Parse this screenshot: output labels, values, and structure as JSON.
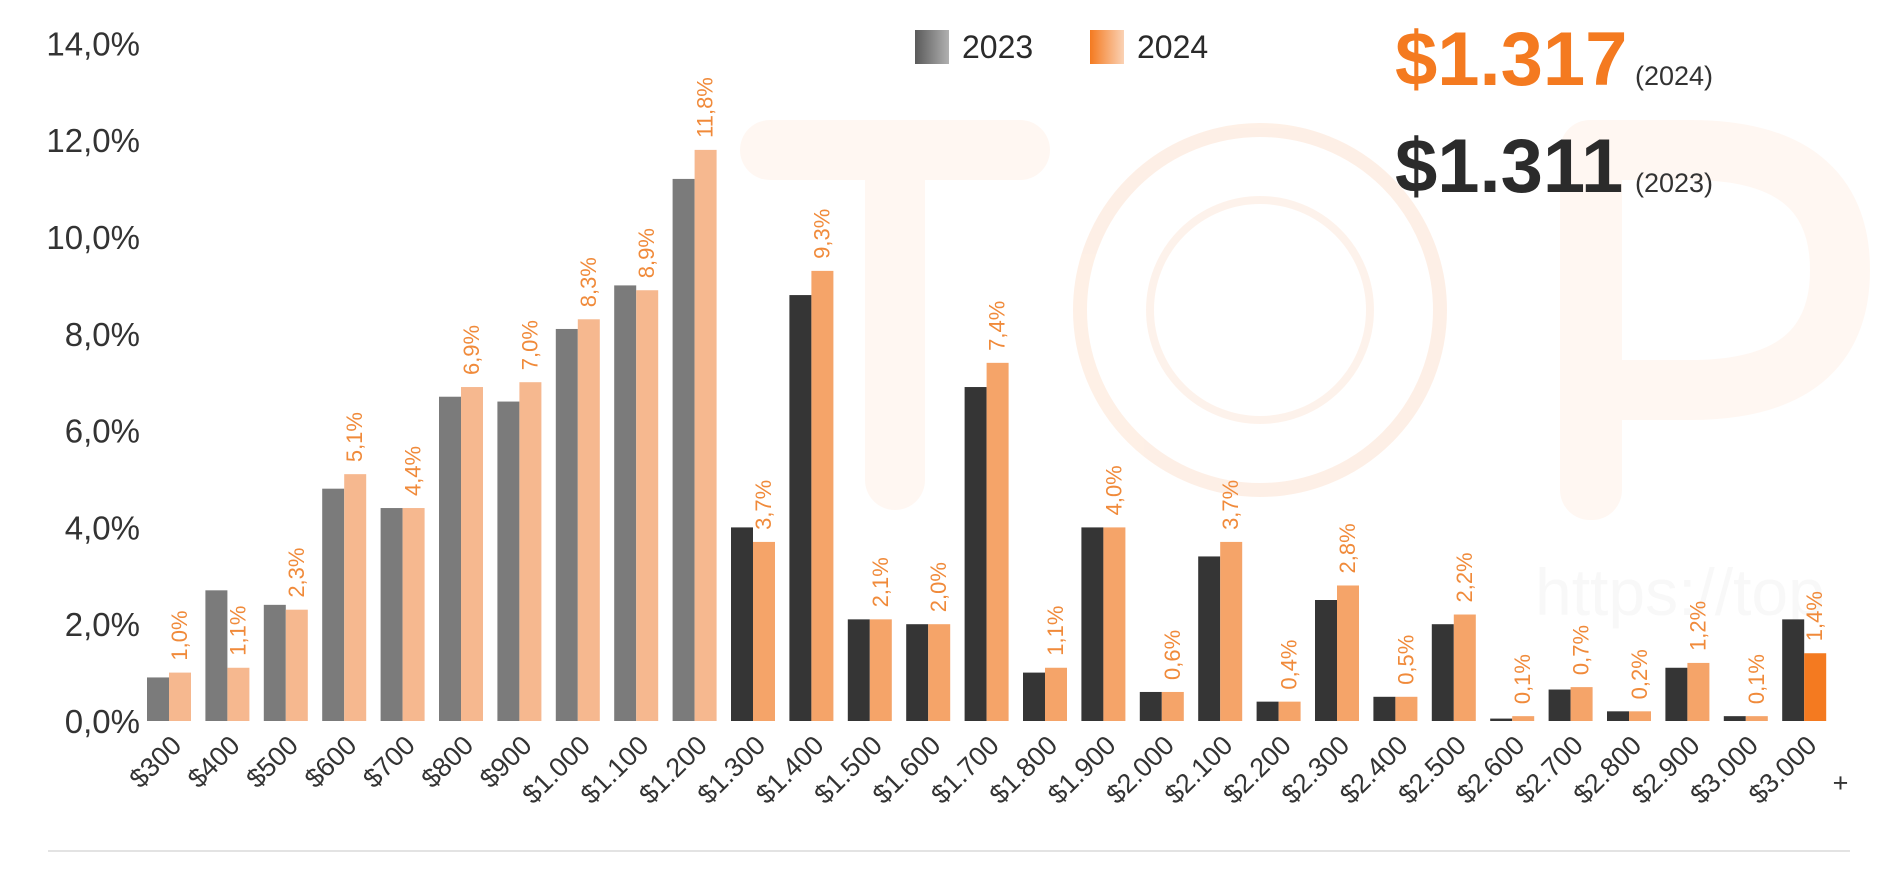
{
  "chart_data": {
    "type": "bar",
    "title": "",
    "xlabel": "",
    "ylabel": "",
    "ylim": [
      0,
      14
    ],
    "yticks": [
      "0,0%",
      "2,0%",
      "4,0%",
      "6,0%",
      "8,0%",
      "10,0%",
      "12,0%",
      "14,0%"
    ],
    "categories": [
      "$300",
      "$400",
      "$500",
      "$600",
      "$700",
      "$800",
      "$900",
      "$1.000",
      "$1.100",
      "$1.200",
      "$1.300",
      "$1.400",
      "$1.500",
      "$1.600",
      "$1.700",
      "$1.800",
      "$1.900",
      "$2.000",
      "$2.100",
      "$2.200",
      "$2.300",
      "$2.400",
      "$2.500",
      "$2.600",
      "$2.700",
      "$2.800",
      "$2.900",
      "$3.000",
      "$3.000"
    ],
    "extra_tick": "+",
    "series": [
      {
        "name": "2023",
        "values": [
          0.9,
          2.7,
          2.4,
          4.8,
          4.4,
          6.7,
          6.6,
          8.1,
          9.0,
          11.2,
          4.0,
          8.8,
          2.1,
          2.0,
          6.9,
          1.0,
          4.0,
          0.6,
          3.4,
          0.4,
          2.5,
          0.5,
          2.0,
          0.05,
          0.65,
          0.2,
          1.1,
          0.1,
          2.1
        ]
      },
      {
        "name": "2024",
        "values": [
          1.0,
          1.1,
          2.3,
          5.1,
          4.4,
          6.9,
          7.0,
          8.3,
          8.9,
          11.8,
          3.7,
          9.3,
          2.1,
          2.0,
          7.4,
          1.1,
          4.0,
          0.6,
          3.7,
          0.4,
          2.8,
          0.5,
          2.2,
          0.1,
          0.7,
          0.2,
          1.2,
          0.1,
          1.4
        ]
      }
    ],
    "data_labels_2024": [
      "1,0%",
      "1,1%",
      "2,3%",
      "5,1%",
      "4,4%",
      "6,9%",
      "7,0%",
      "8,3%",
      "8,9%",
      "11,8%",
      "3,7%",
      "9,3%",
      "2,1%",
      "2,0%",
      "7,4%",
      "1,1%",
      "4,0%",
      "0,6%",
      "3,7%",
      "0,4%",
      "2,8%",
      "0,5%",
      "2,2%",
      "0,1%",
      "0,7%",
      "0,2%",
      "1,2%",
      "0,1%",
      "1,4%"
    ],
    "legend": [
      "2023",
      "2024"
    ],
    "legend_position": "top-center"
  },
  "averages": {
    "y2024": {
      "value": "$1.317",
      "year": "(2024)"
    },
    "y2023": {
      "value": "$1.311",
      "year": "(2023)"
    }
  },
  "watermark": {
    "text": "https://top"
  },
  "colors": {
    "dark_2023": "#333333",
    "mid_2023": "#7a7a7a",
    "orange_2024": "#f5a66a",
    "light_2024": "#f6b891",
    "accent": "#f47a20",
    "label_orange": "#f08a3a"
  }
}
